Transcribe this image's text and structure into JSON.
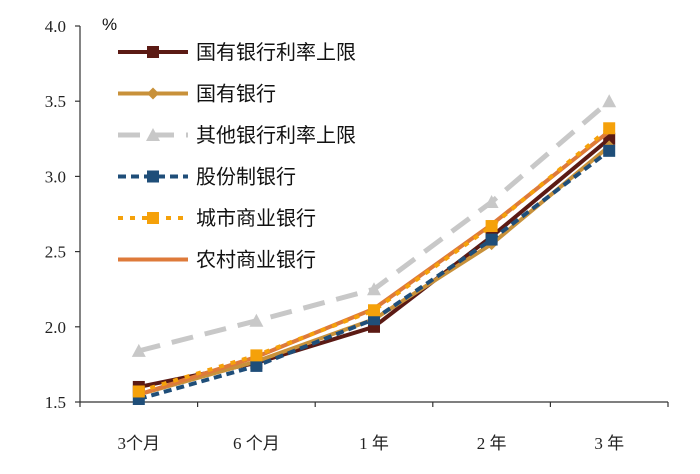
{
  "chart_data": {
    "type": "line",
    "unit_label": "%",
    "categories": [
      "3个月",
      "6 个月",
      "1 年",
      "2 年",
      "3 年"
    ],
    "ylim": [
      1.5,
      4.0
    ],
    "yticks": [
      "1.5",
      "2.0",
      "2.5",
      "3.0",
      "3.5",
      "4.0"
    ],
    "grid": false,
    "legend_position": "top-left",
    "series": [
      {
        "name": "国有银行利率上限",
        "values": [
          1.6,
          1.76,
          2.0,
          2.6,
          3.25
        ],
        "color": "#5b1a14",
        "dash": "solid",
        "marker": "square"
      },
      {
        "name": "国有银行",
        "values": [
          1.55,
          1.77,
          2.05,
          2.55,
          3.2
        ],
        "color": "#c8913a",
        "dash": "solid",
        "marker": "diamond"
      },
      {
        "name": "其他银行利率上限",
        "values": [
          1.84,
          2.04,
          2.25,
          2.83,
          3.5
        ],
        "color": "#c8c8c8",
        "dash": "long-dash",
        "marker": "triangle"
      },
      {
        "name": "股份制银行",
        "values": [
          1.52,
          1.74,
          2.05,
          2.58,
          3.17
        ],
        "color": "#1f4e79",
        "dash": "dash",
        "marker": "square"
      },
      {
        "name": "城市商业银行",
        "values": [
          1.57,
          1.81,
          2.11,
          2.67,
          3.32
        ],
        "color": "#f5a10a",
        "dash": "dot",
        "marker": "square"
      },
      {
        "name": "农村商业银行",
        "values": [
          1.55,
          1.8,
          2.12,
          2.68,
          3.3
        ],
        "color": "#de7a3a",
        "dash": "solid",
        "marker": "none"
      }
    ]
  }
}
